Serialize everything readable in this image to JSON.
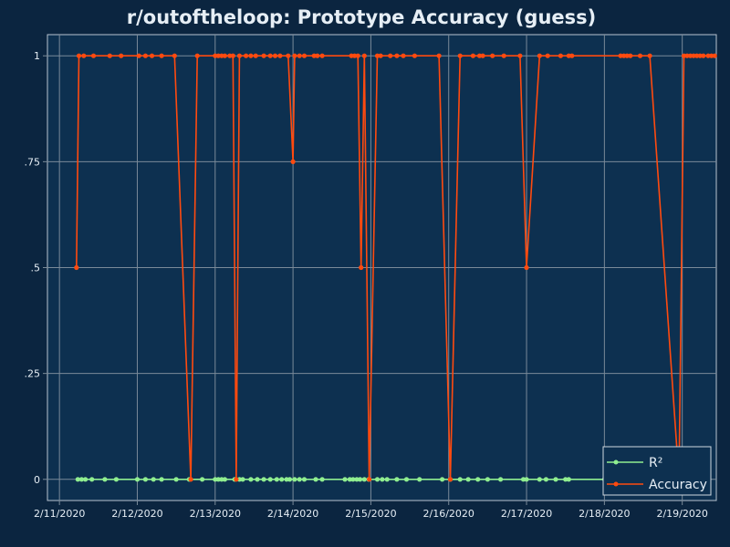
{
  "chart_data": {
    "type": "line",
    "title": "r/outoftheloop: Prototype Accuracy (guess)",
    "xlabel": "",
    "ylabel": "",
    "x_ticks": [
      "2/11/2020",
      "2/12/2020",
      "2/13/2020",
      "2/14/2020",
      "2/15/2020",
      "2/16/2020",
      "2/17/2020",
      "2/18/2020",
      "2/19/2020"
    ],
    "y_ticks": [
      {
        "value": 0,
        "label": "0"
      },
      {
        "value": 0.25,
        "label": ".25"
      },
      {
        "value": 0.5,
        "label": ".5"
      },
      {
        "value": 0.75,
        "label": ".75"
      },
      {
        "value": 1,
        "label": "1"
      }
    ],
    "xlim": [
      "2020-02-10 20:18",
      "2020-02-19 10:30"
    ],
    "ylim": [
      -0.05,
      1.05
    ],
    "grid": true,
    "legend_position": "bottom-right",
    "series": [
      {
        "name": "R²",
        "color": "#90ee90",
        "points": [
          [
            "2020-02-11 05:40",
            0
          ],
          [
            "2020-02-11 06:50",
            0
          ],
          [
            "2020-02-11 08:00",
            0
          ],
          [
            "2020-02-11 10:00",
            0
          ],
          [
            "2020-02-11 14:00",
            0
          ],
          [
            "2020-02-11 17:30",
            0
          ],
          [
            "2020-02-12 00:00",
            0
          ],
          [
            "2020-02-12 02:30",
            0
          ],
          [
            "2020-02-12 05:00",
            0
          ],
          [
            "2020-02-12 07:30",
            0
          ],
          [
            "2020-02-12 12:00",
            0
          ],
          [
            "2020-02-12 16:00",
            0
          ],
          [
            "2020-02-12 20:00",
            0
          ],
          [
            "2020-02-13 00:00",
            0
          ],
          [
            "2020-02-13 01:00",
            0
          ],
          [
            "2020-02-13 02:00",
            0
          ],
          [
            "2020-02-13 03:00",
            0
          ],
          [
            "2020-02-13 06:00",
            0
          ],
          [
            "2020-02-13 07:30",
            0
          ],
          [
            "2020-02-13 08:30",
            0
          ],
          [
            "2020-02-13 11:00",
            0
          ],
          [
            "2020-02-13 13:00",
            0
          ],
          [
            "2020-02-13 15:00",
            0
          ],
          [
            "2020-02-13 17:00",
            0
          ],
          [
            "2020-02-13 19:00",
            0
          ],
          [
            "2020-02-13 20:30",
            0
          ],
          [
            "2020-02-13 22:00",
            0
          ],
          [
            "2020-02-13 23:00",
            0
          ],
          [
            "2020-02-14 00:30",
            0
          ],
          [
            "2020-02-14 02:00",
            0
          ],
          [
            "2020-02-14 03:30",
            0
          ],
          [
            "2020-02-14 07:00",
            0
          ],
          [
            "2020-02-14 09:00",
            0
          ],
          [
            "2020-02-14 16:00",
            0
          ],
          [
            "2020-02-14 17:30",
            0
          ],
          [
            "2020-02-14 18:30",
            0
          ],
          [
            "2020-02-14 19:40",
            0
          ],
          [
            "2020-02-14 20:40",
            0
          ],
          [
            "2020-02-14 22:00",
            0
          ],
          [
            "2020-02-14 23:20",
            0
          ],
          [
            "2020-02-15 02:00",
            0
          ],
          [
            "2020-02-15 03:30",
            0
          ],
          [
            "2020-02-15 05:00",
            0
          ],
          [
            "2020-02-15 08:00",
            0
          ],
          [
            "2020-02-15 11:00",
            0
          ],
          [
            "2020-02-15 15:00",
            0
          ],
          [
            "2020-02-15 22:00",
            0
          ],
          [
            "2020-02-16 00:30",
            0
          ],
          [
            "2020-02-16 03:30",
            0
          ],
          [
            "2020-02-16 06:00",
            0
          ],
          [
            "2020-02-16 09:00",
            0
          ],
          [
            "2020-02-16 12:00",
            0
          ],
          [
            "2020-02-16 16:00",
            0
          ],
          [
            "2020-02-16 23:00",
            0
          ],
          [
            "2020-02-17 00:00",
            0
          ],
          [
            "2020-02-17 04:00",
            0
          ],
          [
            "2020-02-17 06:00",
            0
          ],
          [
            "2020-02-17 09:00",
            0
          ],
          [
            "2020-02-17 12:00",
            0
          ],
          [
            "2020-02-17 13:00",
            0
          ],
          [
            "2020-02-18 00:00",
            0
          ],
          [
            "2020-02-18 12:00",
            0
          ],
          [
            "2020-02-19 00:00",
            0
          ],
          [
            "2020-02-19 05:00",
            0
          ]
        ]
      },
      {
        "name": "Accuracy",
        "color": "#ff4a0f",
        "points": [
          [
            "2020-02-11 05:15",
            0.5
          ],
          [
            "2020-02-11 06:00",
            1
          ],
          [
            "2020-02-11 07:30",
            1
          ],
          [
            "2020-02-11 10:30",
            1
          ],
          [
            "2020-02-11 15:30",
            1
          ],
          [
            "2020-02-11 19:00",
            1
          ],
          [
            "2020-02-12 00:30",
            1
          ],
          [
            "2020-02-12 02:30",
            1
          ],
          [
            "2020-02-12 04:30",
            1
          ],
          [
            "2020-02-12 07:30",
            1
          ],
          [
            "2020-02-12 11:30",
            1
          ],
          [
            "2020-02-12 16:30",
            0
          ],
          [
            "2020-02-12 18:30",
            1
          ],
          [
            "2020-02-13 00:00",
            1
          ],
          [
            "2020-02-13 01:00",
            1
          ],
          [
            "2020-02-13 02:00",
            1
          ],
          [
            "2020-02-13 03:00",
            1
          ],
          [
            "2020-02-13 04:30",
            1
          ],
          [
            "2020-02-13 05:30",
            1
          ],
          [
            "2020-02-13 06:30",
            0
          ],
          [
            "2020-02-13 07:30",
            1
          ],
          [
            "2020-02-13 09:30",
            1
          ],
          [
            "2020-02-13 11:00",
            1
          ],
          [
            "2020-02-13 12:30",
            1
          ],
          [
            "2020-02-13 15:00",
            1
          ],
          [
            "2020-02-13 17:00",
            1
          ],
          [
            "2020-02-13 18:30",
            1
          ],
          [
            "2020-02-13 20:00",
            1
          ],
          [
            "2020-02-13 22:30",
            1
          ],
          [
            "2020-02-14 00:00",
            0.75
          ],
          [
            "2020-02-14 00:30",
            1
          ],
          [
            "2020-02-14 02:00",
            1
          ],
          [
            "2020-02-14 03:30",
            1
          ],
          [
            "2020-02-14 06:30",
            1
          ],
          [
            "2020-02-14 07:30",
            1
          ],
          [
            "2020-02-14 09:00",
            1
          ],
          [
            "2020-02-14 18:00",
            1
          ],
          [
            "2020-02-14 19:00",
            1
          ],
          [
            "2020-02-14 20:00",
            1
          ],
          [
            "2020-02-14 21:00",
            0.5
          ],
          [
            "2020-02-14 22:00",
            1
          ],
          [
            "2020-02-14 23:30",
            0
          ],
          [
            "2020-02-15 02:00",
            1
          ],
          [
            "2020-02-15 03:00",
            1
          ],
          [
            "2020-02-15 06:00",
            1
          ],
          [
            "2020-02-15 08:00",
            1
          ],
          [
            "2020-02-15 10:00",
            1
          ],
          [
            "2020-02-15 13:30",
            1
          ],
          [
            "2020-02-15 21:00",
            1
          ],
          [
            "2020-02-16 00:30",
            0
          ],
          [
            "2020-02-16 03:30",
            1
          ],
          [
            "2020-02-16 07:30",
            1
          ],
          [
            "2020-02-16 09:30",
            1
          ],
          [
            "2020-02-16 10:30",
            1
          ],
          [
            "2020-02-16 13:30",
            1
          ],
          [
            "2020-02-16 17:00",
            1
          ],
          [
            "2020-02-16 22:00",
            1
          ],
          [
            "2020-02-17 00:00",
            0.5
          ],
          [
            "2020-02-17 04:00",
            1
          ],
          [
            "2020-02-17 06:30",
            1
          ],
          [
            "2020-02-17 10:30",
            1
          ],
          [
            "2020-02-17 13:00",
            1
          ],
          [
            "2020-02-17 14:00",
            1
          ],
          [
            "2020-02-18 05:00",
            1
          ],
          [
            "2020-02-18 06:00",
            1
          ],
          [
            "2020-02-18 07:00",
            1
          ],
          [
            "2020-02-18 08:00",
            1
          ],
          [
            "2020-02-18 11:00",
            1
          ],
          [
            "2020-02-18 14:00",
            1
          ],
          [
            "2020-02-18 23:00",
            0
          ],
          [
            "2020-02-19 00:30",
            1
          ],
          [
            "2020-02-19 01:30",
            1
          ],
          [
            "2020-02-19 02:30",
            1
          ],
          [
            "2020-02-19 03:30",
            1
          ],
          [
            "2020-02-19 04:30",
            1
          ],
          [
            "2020-02-19 05:30",
            1
          ],
          [
            "2020-02-19 06:30",
            1
          ],
          [
            "2020-02-19 08:00",
            1
          ],
          [
            "2020-02-19 09:00",
            1
          ],
          [
            "2020-02-19 10:00",
            1
          ]
        ]
      }
    ]
  },
  "colors": {
    "background": "#0b2540",
    "plot_background": "#0d3050",
    "grid": "#7a8a99",
    "text": "#e6eef5",
    "legend_border": "#cfd8e0"
  }
}
